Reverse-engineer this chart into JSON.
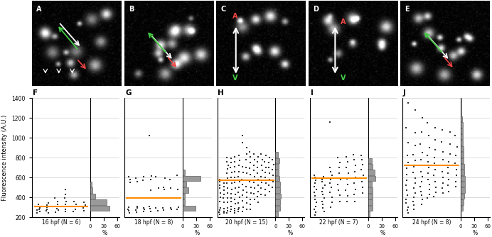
{
  "panels_top": [
    "A",
    "B",
    "C",
    "D",
    "E"
  ],
  "panels_bottom": [
    "F",
    "G",
    "H",
    "I",
    "J"
  ],
  "time_labels": [
    "16 hpf (N = 6)",
    "18 hpf (N = 8)",
    "20 hpf (N = 15)",
    "22 hpf (N = 7)",
    "24 hpf (N = 8)"
  ],
  "ylabel": "Fluorescence intensity (A.U.)",
  "xlabel_hist": "%",
  "ylim": [
    200,
    1400
  ],
  "yticks": [
    200,
    400,
    600,
    800,
    1000,
    1200,
    1400
  ],
  "orange_line_color": "#FF8C00",
  "scatter_color": "#333333",
  "hist_facecolor": "#999999",
  "hist_edgecolor": "#444444",
  "bg_color": "#ffffff",
  "grid_color": "#cccccc",
  "medians": [
    305,
    390,
    570,
    590,
    720
  ],
  "scatter_F": {
    "embryos": [
      [
        240,
        255,
        270,
        280,
        295,
        310,
        330
      ],
      [
        240,
        265,
        280,
        300,
        320,
        345
      ],
      [
        250,
        270,
        285,
        305,
        330,
        355,
        390
      ],
      [
        255,
        280,
        305,
        330,
        360,
        395,
        430,
        480
      ],
      [
        260,
        280,
        305,
        330,
        355
      ],
      [
        265,
        290,
        320,
        350
      ]
    ]
  },
  "hist_F": [
    {
      "y": 230,
      "pct": 0
    },
    {
      "y": 290,
      "pct": 43
    },
    {
      "y": 350,
      "pct": 37
    },
    {
      "y": 410,
      "pct": 12
    },
    {
      "y": 470,
      "pct": 5
    },
    {
      "y": 530,
      "pct": 3
    }
  ],
  "scatter_G": {
    "embryos": [
      [
        240,
        265,
        280,
        300,
        550,
        580,
        610
      ],
      [
        250,
        270,
        290,
        310,
        560,
        595
      ],
      [
        255,
        275,
        295,
        575,
        605
      ],
      [
        260,
        285,
        305,
        470,
        580,
        615,
        1020
      ],
      [
        265,
        290,
        490,
        610
      ],
      [
        270,
        295,
        475,
        500,
        590
      ],
      [
        275,
        295,
        490,
        580
      ],
      [
        280,
        300,
        480,
        620
      ]
    ]
  },
  "hist_G": [
    {
      "y": 230,
      "pct": 0
    },
    {
      "y": 290,
      "pct": 28
    },
    {
      "y": 350,
      "pct": 5
    },
    {
      "y": 410,
      "pct": 4
    },
    {
      "y": 470,
      "pct": 12
    },
    {
      "y": 530,
      "pct": 7
    },
    {
      "y": 590,
      "pct": 40
    },
    {
      "y": 650,
      "pct": 4
    }
  ],
  "scatter_H": {
    "embryos": [
      [
        225,
        250,
        270,
        295,
        360,
        400,
        440,
        490,
        525,
        555,
        580
      ],
      [
        240,
        260,
        285,
        350,
        390,
        430,
        470,
        510,
        545,
        575
      ],
      [
        240,
        265,
        295,
        350,
        395,
        440,
        490,
        545,
        590,
        640,
        685,
        725,
        760,
        800
      ],
      [
        260,
        280,
        305,
        355,
        395,
        435,
        480,
        540,
        600,
        650,
        700,
        750,
        795
      ],
      [
        240,
        265,
        285,
        335,
        380,
        430,
        490,
        550,
        600,
        660,
        710,
        760,
        810
      ],
      [
        255,
        275,
        295,
        345,
        400,
        450,
        500,
        560,
        610,
        660,
        720,
        770,
        820
      ],
      [
        260,
        300,
        365,
        420,
        470,
        530,
        580,
        650,
        710,
        950,
        1020
      ],
      [
        280,
        345,
        400,
        450,
        510,
        570,
        640,
        700,
        780,
        840,
        900
      ],
      [
        275,
        325,
        380,
        440,
        500,
        560,
        630,
        690,
        750,
        810,
        860
      ],
      [
        380,
        435,
        490,
        550,
        610,
        670,
        720,
        780,
        840
      ],
      [
        350,
        405,
        460,
        520,
        580,
        640,
        700,
        760,
        810
      ],
      [
        430,
        490,
        550,
        610,
        670,
        725,
        780,
        840
      ],
      [
        420,
        480,
        540,
        600,
        650,
        700,
        760,
        820
      ],
      [
        460,
        520,
        580,
        640,
        700,
        750,
        800
      ],
      [
        500,
        560,
        620,
        680,
        730,
        780
      ]
    ]
  },
  "hist_H": [
    {
      "y": 230,
      "pct": 5
    },
    {
      "y": 290,
      "pct": 11
    },
    {
      "y": 350,
      "pct": 11
    },
    {
      "y": 410,
      "pct": 12
    },
    {
      "y": 470,
      "pct": 11
    },
    {
      "y": 530,
      "pct": 10
    },
    {
      "y": 590,
      "pct": 9
    },
    {
      "y": 650,
      "pct": 8
    },
    {
      "y": 710,
      "pct": 8
    },
    {
      "y": 770,
      "pct": 9
    },
    {
      "y": 830,
      "pct": 6
    }
  ],
  "scatter_I": {
    "embryos": [
      [
        220,
        250,
        280,
        310,
        350,
        380,
        415,
        450,
        480,
        510,
        545,
        575,
        600,
        620
      ],
      [
        260,
        290,
        325,
        360,
        395,
        425,
        460,
        490,
        525,
        555,
        580,
        610
      ],
      [
        300,
        350,
        400,
        450,
        500,
        545,
        580,
        620,
        660,
        700,
        1160
      ],
      [
        360,
        420,
        470,
        530,
        580,
        640,
        700,
        750,
        800
      ],
      [
        360,
        415,
        470,
        530,
        585,
        640,
        700,
        760,
        810
      ],
      [
        360,
        425,
        480,
        540,
        600,
        660,
        720,
        780,
        830
      ],
      [
        440,
        500,
        560,
        620,
        680,
        730,
        780,
        820
      ]
    ]
  },
  "hist_I": [
    {
      "y": 230,
      "pct": 3
    },
    {
      "y": 290,
      "pct": 10
    },
    {
      "y": 350,
      "pct": 10
    },
    {
      "y": 410,
      "pct": 10
    },
    {
      "y": 470,
      "pct": 10
    },
    {
      "y": 530,
      "pct": 9
    },
    {
      "y": 590,
      "pct": 16
    },
    {
      "y": 650,
      "pct": 14
    },
    {
      "y": 710,
      "pct": 10
    },
    {
      "y": 770,
      "pct": 8
    }
  ],
  "scatter_J": {
    "embryos": [
      [
        240,
        270,
        300,
        340,
        380,
        420,
        470,
        520,
        570,
        630,
        690,
        750,
        820,
        950,
        1100,
        1350
      ],
      [
        280,
        320,
        360,
        400,
        440,
        490,
        540,
        590,
        650,
        710,
        770,
        830,
        920,
        1050,
        1280
      ],
      [
        330,
        380,
        420,
        460,
        510,
        560,
        610,
        660,
        720,
        780,
        850,
        940,
        1060,
        1200
      ],
      [
        390,
        430,
        480,
        530,
        580,
        640,
        700,
        760,
        820,
        900,
        1020,
        1150
      ],
      [
        410,
        450,
        500,
        560,
        620,
        680,
        740,
        800,
        880,
        980,
        1100
      ],
      [
        440,
        490,
        540,
        600,
        660,
        720,
        780,
        860,
        960,
        1080
      ],
      [
        460,
        520,
        580,
        640,
        700,
        760,
        840,
        940,
        1060
      ],
      [
        510,
        560,
        620,
        680,
        740,
        820,
        910,
        1020
      ]
    ]
  },
  "hist_J": [
    {
      "y": 230,
      "pct": 0
    },
    {
      "y": 290,
      "pct": 4
    },
    {
      "y": 350,
      "pct": 6
    },
    {
      "y": 410,
      "pct": 8
    },
    {
      "y": 470,
      "pct": 9
    },
    {
      "y": 530,
      "pct": 9
    },
    {
      "y": 590,
      "pct": 9
    },
    {
      "y": 650,
      "pct": 8
    },
    {
      "y": 710,
      "pct": 8
    },
    {
      "y": 770,
      "pct": 7
    },
    {
      "y": 830,
      "pct": 7
    },
    {
      "y": 890,
      "pct": 6
    },
    {
      "y": 950,
      "pct": 5
    },
    {
      "y": 1010,
      "pct": 5
    },
    {
      "y": 1070,
      "pct": 5
    },
    {
      "y": 1130,
      "pct": 4
    },
    {
      "y": 1190,
      "pct": 3
    },
    {
      "y": 1250,
      "pct": 2
    },
    {
      "y": 1310,
      "pct": 2
    },
    {
      "y": 1370,
      "pct": 1
    }
  ]
}
